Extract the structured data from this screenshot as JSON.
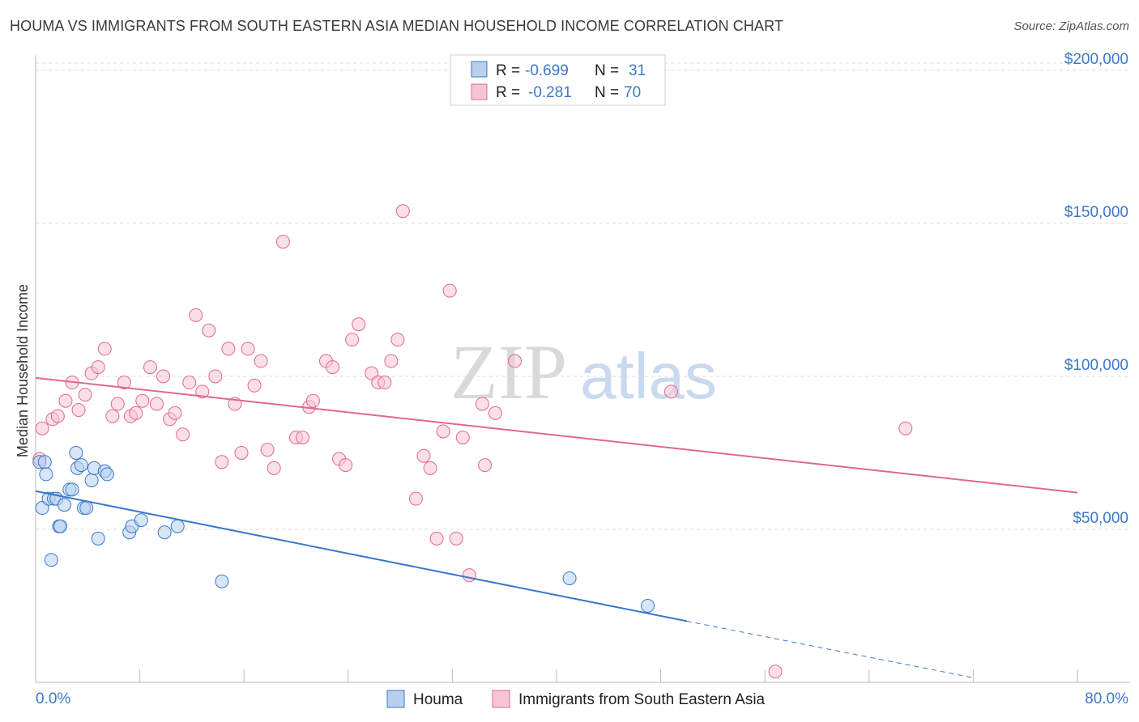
{
  "title": "HOUMA VS IMMIGRANTS FROM SOUTH EASTERN ASIA MEDIAN HOUSEHOLD INCOME CORRELATION CHART",
  "source": "Source: ZipAtlas.com",
  "watermark": {
    "zip": "ZIP",
    "atlas": "atlas"
  },
  "colors": {
    "houma": "#3b78c8",
    "immigrants": "#e06890",
    "houma_fill": "#b7d0f0",
    "immigrants_fill": "#f7c4d3",
    "axis_text": "#3b78c8"
  },
  "legend_top": {
    "rows": [
      {
        "r_label": "R =",
        "r_value": "-0.699",
        "n_label": "N =",
        "n_value": "31"
      },
      {
        "r_label": "R =",
        "r_value": "-0.281",
        "n_label": "N =",
        "n_value": "70"
      }
    ]
  },
  "legend_bottom": [
    "Houma",
    "Immigrants from South Eastern Asia"
  ],
  "chart_data": {
    "type": "scatter",
    "title": "HOUMA VS IMMIGRANTS FROM SOUTH EASTERN ASIA MEDIAN HOUSEHOLD INCOME CORRELATION CHART",
    "xlabel": "",
    "ylabel": "Median Household Income",
    "xlim": [
      0,
      80
    ],
    "ylim": [
      0,
      205000
    ],
    "x_tick_labels": [
      "0.0%",
      "80.0%"
    ],
    "y_ticks": [
      50000,
      100000,
      150000,
      200000
    ],
    "y_tick_labels": [
      "$50,000",
      "$100,000",
      "$150,000",
      "$200,000"
    ],
    "grid": true,
    "legend_position": "top-center",
    "series": [
      {
        "name": "Houma",
        "color": "#3b78c8",
        "points": [
          [
            0.3,
            72000
          ],
          [
            0.5,
            57000
          ],
          [
            0.7,
            72000
          ],
          [
            0.8,
            68000
          ],
          [
            1.0,
            60000
          ],
          [
            1.2,
            40000
          ],
          [
            1.4,
            60000
          ],
          [
            1.6,
            60000
          ],
          [
            1.8,
            51000
          ],
          [
            1.9,
            51000
          ],
          [
            2.2,
            58000
          ],
          [
            2.6,
            63000
          ],
          [
            2.8,
            63000
          ],
          [
            3.1,
            75000
          ],
          [
            3.2,
            70000
          ],
          [
            3.5,
            71000
          ],
          [
            3.7,
            57000
          ],
          [
            3.9,
            57000
          ],
          [
            4.3,
            66000
          ],
          [
            4.5,
            70000
          ],
          [
            4.8,
            47000
          ],
          [
            5.3,
            69000
          ],
          [
            5.5,
            68000
          ],
          [
            7.2,
            49000
          ],
          [
            7.4,
            51000
          ],
          [
            8.1,
            53000
          ],
          [
            9.9,
            49000
          ],
          [
            10.9,
            51000
          ],
          [
            14.3,
            33000
          ],
          [
            41.0,
            34000
          ],
          [
            47.0,
            25000
          ]
        ],
        "trend": {
          "x": [
            0,
            50
          ],
          "y": [
            62500,
            20000
          ],
          "dashed_to": [
            72,
            1500
          ]
        }
      },
      {
        "name": "Immigrants from South Eastern Asia",
        "color": "#e06890",
        "points": [
          [
            0.3,
            73000
          ],
          [
            0.5,
            83000
          ],
          [
            1.3,
            86000
          ],
          [
            1.7,
            87000
          ],
          [
            2.3,
            92000
          ],
          [
            2.8,
            98000
          ],
          [
            3.3,
            89000
          ],
          [
            3.8,
            94000
          ],
          [
            4.3,
            101000
          ],
          [
            4.8,
            103000
          ],
          [
            5.3,
            109000
          ],
          [
            5.9,
            87000
          ],
          [
            6.3,
            91000
          ],
          [
            6.8,
            98000
          ],
          [
            7.3,
            87000
          ],
          [
            7.7,
            88000
          ],
          [
            8.2,
            92000
          ],
          [
            8.8,
            103000
          ],
          [
            9.3,
            91000
          ],
          [
            9.8,
            100000
          ],
          [
            10.3,
            86000
          ],
          [
            10.7,
            88000
          ],
          [
            11.3,
            81000
          ],
          [
            11.8,
            98000
          ],
          [
            12.3,
            120000
          ],
          [
            12.8,
            95000
          ],
          [
            13.3,
            115000
          ],
          [
            13.8,
            100000
          ],
          [
            14.3,
            72000
          ],
          [
            14.8,
            109000
          ],
          [
            15.3,
            91000
          ],
          [
            15.8,
            75000
          ],
          [
            16.3,
            109000
          ],
          [
            16.8,
            97000
          ],
          [
            17.3,
            105000
          ],
          [
            17.8,
            76000
          ],
          [
            18.3,
            70000
          ],
          [
            19.0,
            144000
          ],
          [
            20.0,
            80000
          ],
          [
            20.5,
            80000
          ],
          [
            21.0,
            90000
          ],
          [
            21.3,
            92000
          ],
          [
            22.3,
            105000
          ],
          [
            22.8,
            103000
          ],
          [
            23.3,
            73000
          ],
          [
            23.8,
            71000
          ],
          [
            24.3,
            112000
          ],
          [
            24.8,
            117000
          ],
          [
            25.8,
            101000
          ],
          [
            26.3,
            98000
          ],
          [
            26.8,
            98000
          ],
          [
            27.3,
            105000
          ],
          [
            27.8,
            112000
          ],
          [
            28.2,
            154000
          ],
          [
            29.2,
            60000
          ],
          [
            29.8,
            74000
          ],
          [
            30.3,
            70000
          ],
          [
            30.8,
            47000
          ],
          [
            31.3,
            82000
          ],
          [
            31.8,
            128000
          ],
          [
            32.3,
            47000
          ],
          [
            32.8,
            80000
          ],
          [
            33.3,
            35000
          ],
          [
            34.3,
            91000
          ],
          [
            34.5,
            71000
          ],
          [
            35.3,
            88000
          ],
          [
            36.8,
            105000
          ],
          [
            48.8,
            95000
          ],
          [
            56.8,
            3500
          ],
          [
            66.8,
            83000
          ]
        ],
        "trend": {
          "x": [
            0,
            80
          ],
          "y": [
            99500,
            62000
          ]
        }
      }
    ]
  }
}
